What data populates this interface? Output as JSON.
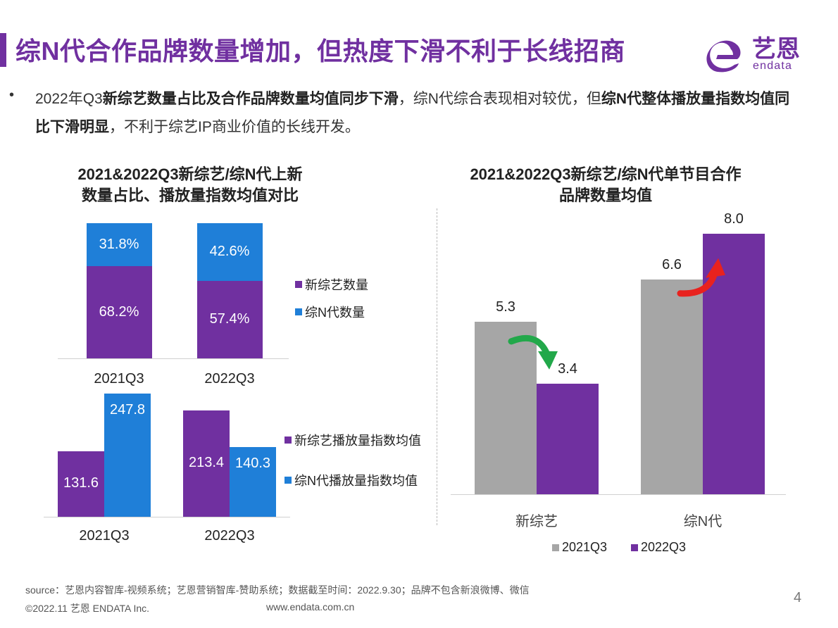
{
  "colors": {
    "purple": "#7030A0",
    "blue": "#1F7FD8",
    "gray": "#A6A6A6",
    "title_accent": "#7030A0",
    "green_arrow": "#22A84A",
    "red_arrow": "#E8221E"
  },
  "header": {
    "title": "综N代合作品牌数量增加，但热度下滑不利于长线招商",
    "logo_cn": "艺恩",
    "logo_en": "endata",
    "logo_icon": "endata-e-logo-icon"
  },
  "summary": {
    "bullet": "•",
    "segments": [
      {
        "text": "2022年Q3",
        "bold": false
      },
      {
        "text": "新综艺数量占比及合作品牌数量均值同步下滑",
        "bold": true
      },
      {
        "text": "，综N代综合表现相对较优，但",
        "bold": false
      },
      {
        "text": "综N代整体播放量指数均值同比下滑明显",
        "bold": true
      },
      {
        "text": "，不利于综艺IP商业价值的长线开发。",
        "bold": false
      }
    ]
  },
  "chart_data": [
    {
      "type": "bar",
      "stacked": true,
      "title": "2021&2022Q3新综艺/综N代上新数量占比、播放量指数均值对比",
      "title_lines": [
        "2021&2022Q3新综艺/综N代上新",
        "数量占比、播放量指数均值对比"
      ],
      "categories": [
        "2021Q3",
        "2022Q3"
      ],
      "series": [
        {
          "name": "新综艺数量",
          "values": [
            68.2,
            57.4
          ],
          "labels": [
            "68.2%",
            "57.4%"
          ],
          "color": "#7030A0"
        },
        {
          "name": "综N代数量",
          "values": [
            31.8,
            42.6
          ],
          "labels": [
            "31.8%",
            "42.6%"
          ],
          "color": "#1F7FD8"
        }
      ],
      "ylim": [
        0,
        100
      ],
      "legend": "right"
    },
    {
      "type": "bar",
      "stacked": false,
      "categories": [
        "2021Q3",
        "2022Q3"
      ],
      "series": [
        {
          "name": "新综艺播放量指数均值",
          "values": [
            131.6,
            213.4
          ],
          "labels": [
            "131.6",
            "213.4"
          ],
          "color": "#7030A0"
        },
        {
          "name": "综N代播放量指数均值",
          "values": [
            247.8,
            140.3
          ],
          "labels": [
            "247.8",
            "140.3"
          ],
          "color": "#1F7FD8"
        }
      ],
      "ylim": [
        0,
        250
      ],
      "legend": "right"
    },
    {
      "type": "bar",
      "stacked": false,
      "title": "2021&2022Q3新综艺/综N代单节目合作品牌数量均值",
      "title_lines": [
        "2021&2022Q3新综艺/综N代单节目合作",
        "品牌数量均值"
      ],
      "categories": [
        "新综艺",
        "综N代"
      ],
      "series": [
        {
          "name": "2021Q3",
          "values": [
            5.3,
            6.6
          ],
          "labels": [
            "5.3",
            "6.6"
          ],
          "color": "#A6A6A6"
        },
        {
          "name": "2022Q3",
          "values": [
            3.4,
            8.0
          ],
          "labels": [
            "3.4",
            "8.0"
          ],
          "color": "#7030A0"
        }
      ],
      "ylim": [
        0,
        8
      ],
      "legend": "bottom",
      "annotations": [
        {
          "type": "trend-arrow",
          "category": "新综艺",
          "direction": "down",
          "color": "#22A84A"
        },
        {
          "type": "trend-arrow",
          "category": "综N代",
          "direction": "up",
          "color": "#E8221E"
        }
      ]
    }
  ],
  "footer": {
    "source": "source：艺恩内容智库-视频系统；艺恩营销智库-赞助系统；数据截至时间：2022.9.30；品牌不包含新浪微博、微信",
    "copyright": "©2022.11 艺恩 ENDATA Inc.",
    "website": "www.endata.com.cn",
    "page_number": "4"
  }
}
